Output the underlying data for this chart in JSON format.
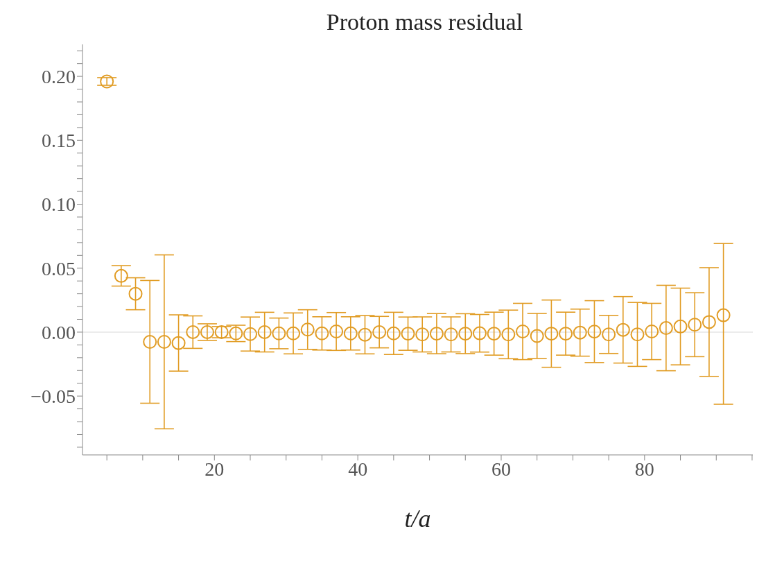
{
  "chart_data": {
    "type": "scatter",
    "title": "Proton mass residual",
    "xlabel": "t/a",
    "x": [
      5,
      7,
      9,
      11,
      13,
      15,
      17,
      19,
      21,
      23,
      25,
      27,
      29,
      31,
      33,
      35,
      37,
      39,
      41,
      43,
      45,
      47,
      49,
      51,
      53,
      55,
      57,
      59,
      61,
      63,
      65,
      67,
      69,
      71,
      73,
      75,
      77,
      79,
      81,
      83,
      85,
      87,
      89,
      91
    ],
    "series": [
      {
        "color": "#e19c24",
        "values": [
          0.196,
          0.044,
          0.03,
          -0.0076,
          -0.0076,
          -0.0085,
          0.0,
          0.0,
          0.0,
          -0.001,
          -0.0015,
          0.0,
          -0.001,
          -0.001,
          0.002,
          -0.001,
          0.0005,
          -0.001,
          -0.002,
          0.0,
          -0.001,
          -0.0012,
          -0.0018,
          -0.0012,
          -0.0018,
          -0.0012,
          -0.0009,
          -0.0012,
          -0.0018,
          0.0005,
          -0.003,
          -0.0012,
          -0.0012,
          -0.0004,
          0.0004,
          -0.0018,
          0.0018,
          -0.0018,
          0.0005,
          0.0032,
          0.0044,
          0.0058,
          0.0079,
          0.0132
        ],
        "errors": [
          0.003,
          0.008,
          0.0125,
          0.048,
          0.068,
          0.022,
          0.0127,
          0.0065,
          0.0044,
          0.0064,
          0.0133,
          0.0155,
          0.012,
          0.016,
          0.0155,
          0.013,
          0.0148,
          0.013,
          0.015,
          0.0123,
          0.0165,
          0.013,
          0.0137,
          0.0157,
          0.0137,
          0.0156,
          0.0147,
          0.0168,
          0.019,
          0.022,
          0.0176,
          0.0263,
          0.0168,
          0.0184,
          0.0242,
          0.0149,
          0.026,
          0.025,
          0.022,
          0.0334,
          0.03,
          0.025,
          0.0425,
          [
            -0.0564,
            0.0693
          ]
        ]
      }
    ],
    "xlim": [
      1.6,
      95.1
    ],
    "xticks": [
      {
        "value": 5,
        "label": null
      },
      {
        "value": 10,
        "label": null
      },
      {
        "value": 15,
        "label": null
      },
      20,
      {
        "value": 25,
        "label": null
      },
      {
        "value": 30,
        "label": null
      },
      {
        "value": 35,
        "label": null
      },
      40,
      {
        "value": 45,
        "label": null
      },
      {
        "value": 50,
        "label": null
      },
      {
        "value": 55,
        "label": null
      },
      60,
      {
        "value": 65,
        "label": null
      },
      {
        "value": 70,
        "label": null
      },
      {
        "value": 75,
        "label": null
      },
      80,
      {
        "value": 85,
        "label": null
      },
      {
        "value": 90,
        "label": null
      },
      {
        "value": 95,
        "label": null
      }
    ],
    "ylim": [
      -0.096,
      0.225
    ],
    "yticks": [
      {
        "value": -0.09,
        "label": null
      },
      {
        "value": -0.08,
        "label": null
      },
      {
        "value": -0.07,
        "label": null
      },
      {
        "value": -0.06,
        "label": null
      },
      {
        "value": -0.05,
        "label": "−0.05"
      },
      {
        "value": -0.04,
        "label": null
      },
      {
        "value": -0.03,
        "label": null
      },
      {
        "value": -0.02,
        "label": null
      },
      {
        "value": -0.01,
        "label": null
      },
      {
        "value": 0,
        "label": "0.00"
      },
      {
        "value": 0.01,
        "label": null
      },
      {
        "value": 0.02,
        "label": null
      },
      {
        "value": 0.03,
        "label": null
      },
      {
        "value": 0.04,
        "label": null
      },
      {
        "value": 0.05,
        "label": "0.05"
      },
      {
        "value": 0.06,
        "label": null
      },
      {
        "value": 0.07,
        "label": null
      },
      {
        "value": 0.08,
        "label": null
      },
      {
        "value": 0.09,
        "label": null
      },
      {
        "value": 0.1,
        "label": "0.10"
      },
      {
        "value": 0.11,
        "label": null
      },
      {
        "value": 0.12,
        "label": null
      },
      {
        "value": 0.13,
        "label": null
      },
      {
        "value": 0.14,
        "label": null
      },
      {
        "value": 0.15,
        "label": "0.15"
      },
      {
        "value": 0.16,
        "label": null
      },
      {
        "value": 0.17,
        "label": null
      },
      {
        "value": 0.18,
        "label": null
      },
      {
        "value": 0.19,
        "label": null
      },
      {
        "value": 0.2,
        "label": "0.20"
      },
      {
        "value": 0.21,
        "label": null
      },
      {
        "value": 0.22,
        "label": null
      }
    ],
    "ref_lines": [
      {
        "axis": "y",
        "value": 0,
        "label": null,
        "color": "#e6e6e6"
      }
    ],
    "marker": "circle",
    "grid": false,
    "legend": false
  }
}
